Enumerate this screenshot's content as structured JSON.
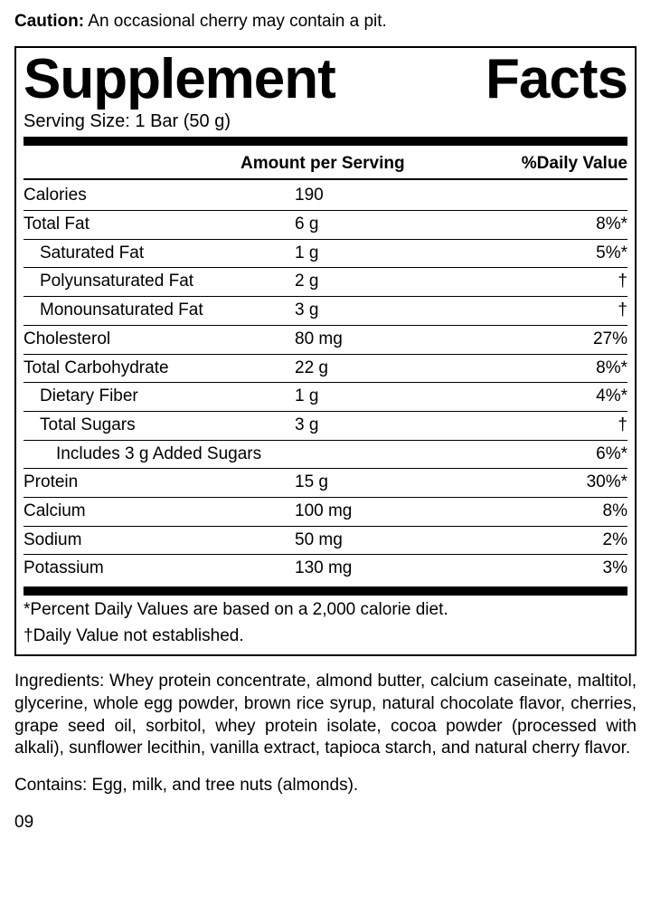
{
  "caution_label": "Caution:",
  "caution_text": "An occasional cherry may contain a pit.",
  "title_word1": "Supplement",
  "title_word2": "Facts",
  "serving_size": "Serving Size: 1 Bar (50 g)",
  "header_amount": "Amount per Serving",
  "header_dv": "%Daily Value",
  "rows": [
    {
      "name": "Calories",
      "amt": "190",
      "dv": "",
      "indent": 0
    },
    {
      "name": "Total Fat",
      "amt": "6 g",
      "dv": "8%*",
      "indent": 0
    },
    {
      "name": "Saturated Fat",
      "amt": "1 g",
      "dv": "5%*",
      "indent": 1
    },
    {
      "name": "Polyunsaturated Fat",
      "amt": "2 g",
      "dv": "†",
      "indent": 1
    },
    {
      "name": "Monounsaturated Fat",
      "amt": "3 g",
      "dv": "†",
      "indent": 1
    },
    {
      "name": "Cholesterol",
      "amt": "80 mg",
      "dv": "27%",
      "indent": 0
    },
    {
      "name": "Total Carbohydrate",
      "amt": "22 g",
      "dv": "8%*",
      "indent": 0
    },
    {
      "name": "Dietary Fiber",
      "amt": "1 g",
      "dv": "4%*",
      "indent": 1
    },
    {
      "name": "Total Sugars",
      "amt": "3 g",
      "dv": "†",
      "indent": 1
    },
    {
      "name": "Includes 3 g Added Sugars",
      "amt": "",
      "dv": "6%*",
      "indent": 2
    },
    {
      "name": "Protein",
      "amt": "15 g",
      "dv": "30%*",
      "indent": 0
    },
    {
      "name": "Calcium",
      "amt": "100 mg",
      "dv": "8%",
      "indent": 0
    },
    {
      "name": "Sodium",
      "amt": "50 mg",
      "dv": "2%",
      "indent": 0
    },
    {
      "name": "Potassium",
      "amt": "130 mg",
      "dv": "3%",
      "indent": 0
    }
  ],
  "footnote1": "*Percent Daily Values are based on a 2,000 calorie diet.",
  "footnote2": "†Daily Value not established.",
  "ingredients": "Ingredients: Whey protein concentrate, almond butter, calcium caseinate, maltitol, glycerine, whole egg powder, brown rice syrup, natural chocolate flavor, cherries, grape seed oil, sorbitol, whey protein isolate, cocoa powder (processed with alkali), sunflower lecithin, vanilla extract, tapioca starch, and natural cherry flavor.",
  "contains": "Contains: Egg, milk, and tree nuts (almonds).",
  "code": "09"
}
